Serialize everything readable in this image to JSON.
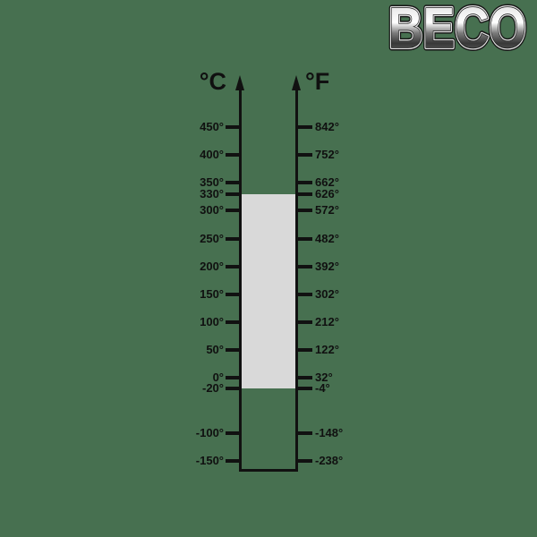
{
  "page": {
    "background_color": "#477050"
  },
  "logo": {
    "text": "BECO"
  },
  "diagram": {
    "celsius_header": "°C",
    "fahrenheit_header": "°F",
    "axis_color": "#111111",
    "label_color": "#101010",
    "band_color": "#D9D9D9",
    "band_range_c": {
      "from": -20,
      "to": 330
    },
    "scale": [
      {
        "c": 450,
        "c_label": "450°",
        "f_label": "842°"
      },
      {
        "c": 400,
        "c_label": "400°",
        "f_label": "752°"
      },
      {
        "c": 350,
        "c_label": "350°",
        "f_label": "662°"
      },
      {
        "c": 330,
        "c_label": "330°",
        "f_label": "626°"
      },
      {
        "c": 300,
        "c_label": "300°",
        "f_label": "572°"
      },
      {
        "c": 250,
        "c_label": "250°",
        "f_label": "482°"
      },
      {
        "c": 200,
        "c_label": "200°",
        "f_label": "392°"
      },
      {
        "c": 150,
        "c_label": "150°",
        "f_label": "302°"
      },
      {
        "c": 100,
        "c_label": "100°",
        "f_label": "212°"
      },
      {
        "c": 50,
        "c_label": "50°",
        "f_label": "122°"
      },
      {
        "c": 0,
        "c_label": "0°",
        "f_label": "32°"
      },
      {
        "c": -20,
        "c_label": "-20°",
        "f_label": "-4°"
      },
      {
        "c": -100,
        "c_label": "-100°",
        "f_label": "-148°"
      },
      {
        "c": -150,
        "c_label": "-150°",
        "f_label": "-238°"
      }
    ]
  }
}
